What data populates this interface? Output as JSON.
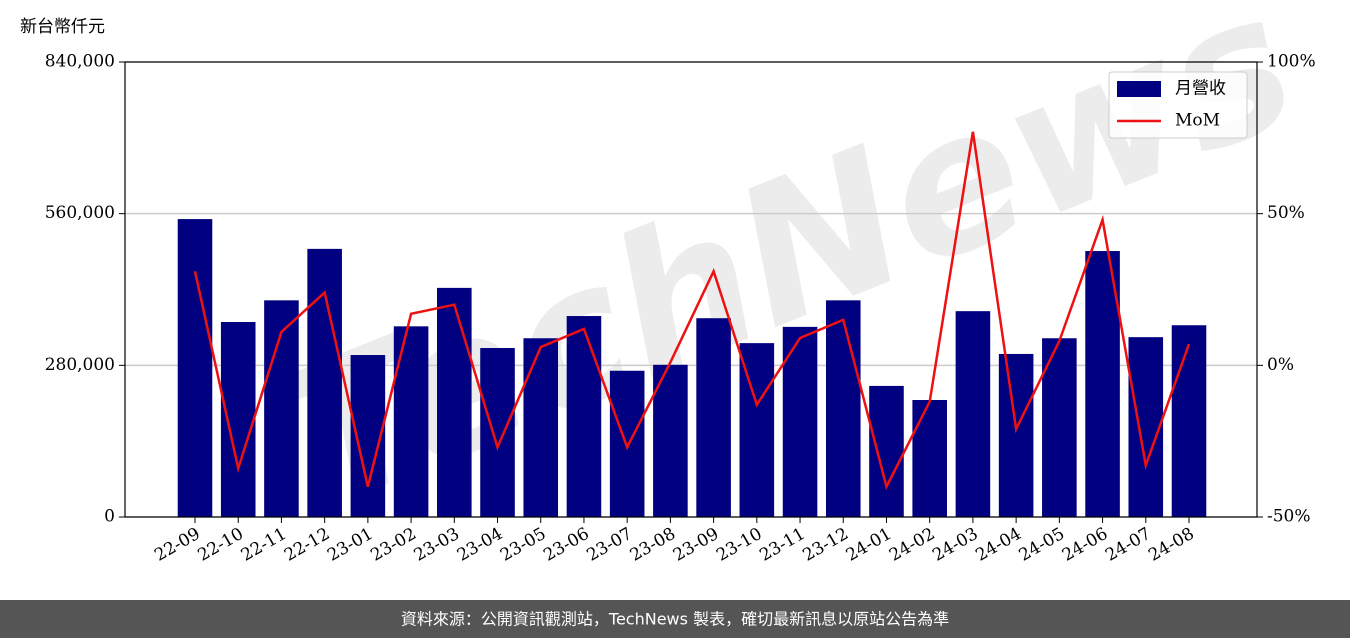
{
  "chart_data": {
    "type": "bar",
    "y_label": "新台幣仟元",
    "categories": [
      "22-09",
      "22-10",
      "22-11",
      "22-12",
      "23-01",
      "23-02",
      "23-03",
      "23-04",
      "23-05",
      "23-06",
      "23-07",
      "23-08",
      "23-09",
      "23-10",
      "23-11",
      "23-12",
      "24-01",
      "24-02",
      "24-03",
      "24-04",
      "24-05",
      "24-06",
      "24-07",
      "24-08"
    ],
    "series": [
      {
        "name": "月營收",
        "color": "#000080",
        "values": [
          550000,
          360000,
          400000,
          495000,
          299000,
          352000,
          423000,
          312000,
          330000,
          371000,
          270000,
          281000,
          367000,
          321000,
          351000,
          400000,
          242000,
          216000,
          380000,
          301000,
          330000,
          491000,
          332000,
          354000
        ]
      },
      {
        "name": "MoM",
        "color": "#ee1111",
        "axis": "y2",
        "values": [
          31,
          -34,
          11,
          24,
          -40,
          17,
          20,
          -27,
          6,
          12,
          -27,
          1,
          31,
          -13,
          9,
          15,
          -40,
          -12,
          77,
          -21,
          8,
          48,
          -33,
          7
        ]
      }
    ],
    "ylim": [
      0,
      840000
    ],
    "yticks": [
      0,
      {
        "value": 280000,
        "label": "280,000"
      },
      {
        "value": 560000,
        "label": "560,000"
      },
      {
        "value": 840000,
        "label": "840,000"
      }
    ],
    "y2lim": [
      -50,
      100
    ],
    "y2ticks": [
      {
        "value": -50,
        "label": "-50%"
      },
      {
        "value": 0,
        "label": "0%"
      },
      {
        "value": 50,
        "label": "50%"
      },
      {
        "value": 100,
        "label": "100%"
      }
    ],
    "grid": true,
    "legend": "upper right",
    "watermark": "TechNews",
    "footer": "資料來源：公開資訊觀測站，TechNews 製表，確切最新訊息以原站公告為準"
  }
}
